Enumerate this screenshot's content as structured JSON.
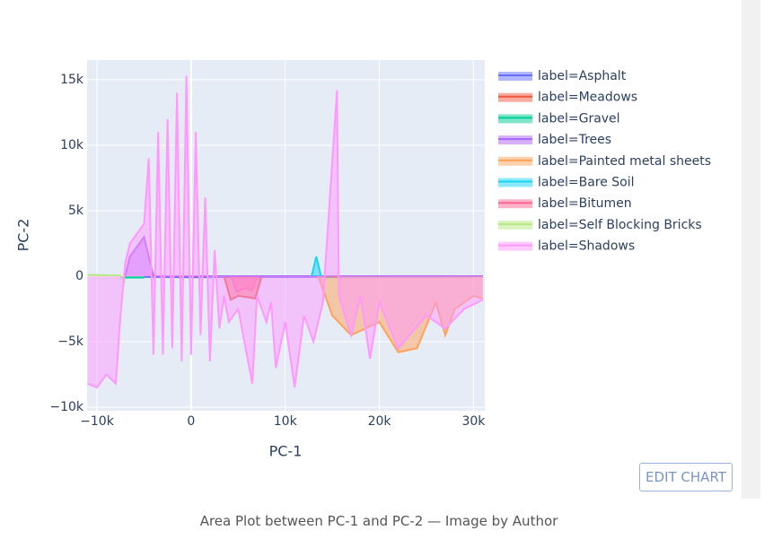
{
  "chart_data": {
    "type": "area",
    "xlabel": "PC-1",
    "ylabel": "PC-2",
    "xlim": [
      -11050,
      31200
    ],
    "ylim": [
      -10270,
      16500
    ],
    "xticks": [
      {
        "value": -10000,
        "label": "−10k"
      },
      0,
      {
        "value": 10000,
        "label": "10k"
      },
      {
        "value": 20000,
        "label": "20k"
      },
      {
        "value": 30000,
        "label": "30k"
      }
    ],
    "yticks": [
      {
        "value": -10000,
        "label": "−10k"
      },
      {
        "value": -5000,
        "label": "−5k"
      },
      0,
      {
        "value": 5000,
        "label": "5k"
      },
      {
        "value": 10000,
        "label": "10k"
      },
      {
        "value": 15000,
        "label": "15k"
      }
    ],
    "grid": true,
    "legend": "right",
    "series": [
      {
        "name": "label=Asphalt",
        "color": "#636efa",
        "x": [
          -5000,
          0,
          10000,
          20000,
          31000
        ],
        "values": [
          -50,
          -80,
          -60,
          -40,
          -30
        ]
      },
      {
        "name": "label=Meadows",
        "color": "#ef553b",
        "x": [
          3500,
          4200,
          5000,
          6000,
          6800,
          7500
        ],
        "values": [
          0,
          -1800,
          -1500,
          -1600,
          -1700,
          0
        ]
      },
      {
        "name": "label=Gravel",
        "color": "#00cc96",
        "x": [
          -7500,
          -6000,
          -5000
        ],
        "values": [
          -100,
          -100,
          -100
        ]
      },
      {
        "name": "label=Trees",
        "color": "#ab63fa",
        "x": [
          -7000,
          -6500,
          -5500,
          -5000,
          -4000,
          17000,
          31000
        ],
        "values": [
          0,
          1500,
          2500,
          3000,
          0,
          0,
          0
        ]
      },
      {
        "name": "label=Painted metal sheets",
        "color": "#ffa15a",
        "x": [
          13500,
          14000,
          15000,
          17000,
          20000,
          22000,
          24000,
          26000,
          27000,
          28000,
          30000,
          31000
        ],
        "values": [
          0,
          -1000,
          -3000,
          -4500,
          -3500,
          -5800,
          -5500,
          -2000,
          -4500,
          -2500,
          -1500,
          -1700
        ]
      },
      {
        "name": "label=Bare Soil",
        "color": "#19d3f3",
        "x": [
          12800,
          13300,
          13800
        ],
        "values": [
          0,
          1500,
          0
        ]
      },
      {
        "name": "label=Bitumen",
        "color": "#ff6692",
        "x": [
          4300,
          4800,
          5800,
          6500,
          7000
        ],
        "values": [
          0,
          -1200,
          -900,
          -1100,
          0
        ]
      },
      {
        "name": "label=Self Blocking Bricks",
        "color": "#b6e880",
        "x": [
          -11000,
          -7500,
          -7000
        ],
        "values": [
          100,
          50,
          -500
        ]
      },
      {
        "name": "label=Shadows",
        "color": "#ff97ff",
        "x": [
          -11000,
          -10000,
          -9000,
          -8000,
          -7500,
          -7000,
          -6500,
          -5000,
          -4500,
          -4000,
          -3500,
          -3000,
          -2500,
          -2000,
          -1500,
          -1000,
          -500,
          0,
          500,
          1000,
          1500,
          2000,
          2500,
          3000,
          3500,
          4000,
          5000,
          6500,
          7000,
          8000,
          8500,
          9000,
          10000,
          11000,
          12000,
          13000,
          14000,
          15500,
          15700,
          17000,
          18000,
          19000,
          20000,
          22000,
          25000,
          27000,
          29000,
          31000
        ],
        "values": [
          -8200,
          -8500,
          -7500,
          -8200,
          -3000,
          1000,
          2500,
          4000,
          9000,
          -6000,
          11000,
          -6000,
          12000,
          -5500,
          14000,
          -6500,
          15300,
          -6000,
          11000,
          -4500,
          6000,
          -6500,
          2000,
          -4000,
          -1500,
          -3500,
          -2500,
          -8200,
          -1500,
          -3500,
          -2000,
          -7000,
          -3500,
          -8500,
          -3000,
          -5000,
          -2000,
          14200,
          -1500,
          -4500,
          -1500,
          -6300,
          -2000,
          -5500,
          -3000,
          -4000,
          -2500,
          -1800
        ]
      }
    ]
  },
  "ui": {
    "edit_button": "EDIT CHART",
    "caption": "Area Plot between PC-1 and PC-2 — Image by Author"
  }
}
